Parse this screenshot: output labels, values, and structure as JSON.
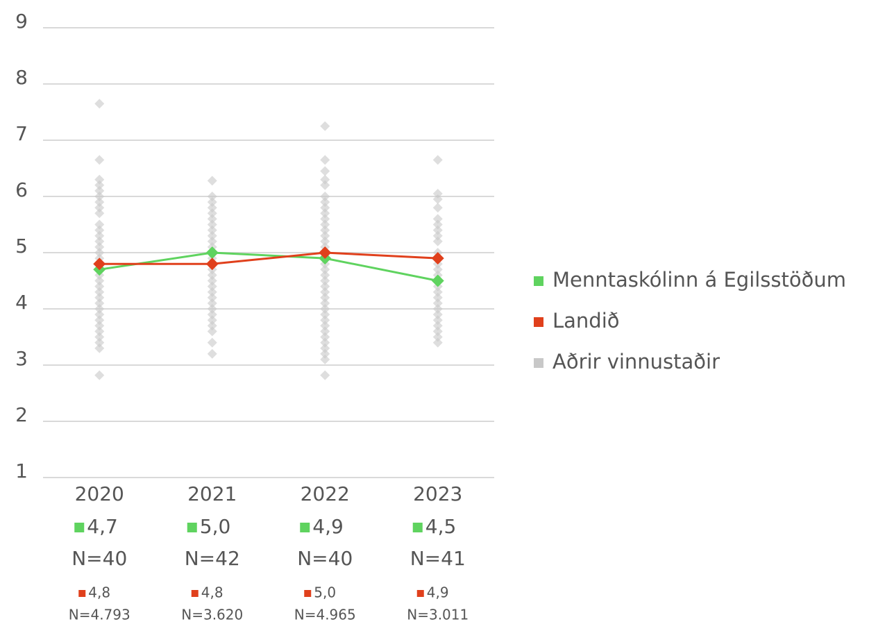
{
  "chart_data": {
    "type": "line",
    "categories": [
      "2020",
      "2021",
      "2022",
      "2023"
    ],
    "ylim": [
      1,
      9
    ],
    "yticks": [
      1,
      2,
      3,
      4,
      5,
      6,
      7,
      8,
      9
    ],
    "grid": true,
    "legend": "right",
    "series": [
      {
        "name": "Menntaskólinn á Egilsstöðum",
        "color": "#5fd35f",
        "values": [
          4.7,
          5.0,
          4.9,
          4.5
        ],
        "value_labels": [
          "4,7",
          "5,0",
          "4,9",
          "4,5"
        ],
        "n_labels": [
          "N=40",
          "N=42",
          "N=40",
          "N=41"
        ]
      },
      {
        "name": "Landið",
        "color": "#e0401c",
        "values": [
          4.8,
          4.8,
          5.0,
          4.9
        ],
        "value_labels": [
          "4,8",
          "4,8",
          "5,0",
          "4,9"
        ],
        "n_labels": [
          "N=4.793",
          "N=3.620",
          "N=4.965",
          "N=3.011"
        ]
      },
      {
        "name": "Aðrir vinnustaðir",
        "color": "#c8c8c8",
        "type": "scatter",
        "values": [
          [
            7.65,
            6.65,
            6.3,
            6.2,
            6.1,
            6.0,
            5.9,
            5.8,
            5.7,
            5.5,
            5.4,
            5.3,
            5.2,
            5.1,
            5.0,
            4.9,
            4.8,
            4.6,
            4.5,
            4.4,
            4.3,
            4.2,
            4.1,
            4.0,
            3.9,
            3.8,
            3.7,
            3.6,
            3.5,
            3.4,
            3.3,
            2.82
          ],
          [
            6.28,
            6.0,
            5.9,
            5.8,
            5.7,
            5.6,
            5.5,
            5.4,
            5.3,
            5.2,
            5.1,
            4.9,
            4.8,
            4.7,
            4.6,
            4.5,
            4.4,
            4.3,
            4.2,
            4.1,
            4.0,
            3.9,
            3.8,
            3.7,
            3.6,
            3.4,
            3.2
          ],
          [
            7.25,
            6.65,
            6.45,
            6.3,
            6.2,
            6.0,
            5.9,
            5.8,
            5.7,
            5.6,
            5.5,
            5.4,
            5.3,
            5.2,
            5.1,
            5.0,
            4.9,
            4.8,
            4.7,
            4.6,
            4.5,
            4.4,
            4.3,
            4.2,
            4.1,
            4.0,
            3.9,
            3.8,
            3.7,
            3.6,
            3.5,
            3.4,
            3.3,
            3.2,
            3.1,
            2.82
          ],
          [
            6.65,
            6.05,
            5.95,
            5.8,
            5.6,
            5.5,
            5.4,
            5.3,
            5.2,
            5.0,
            4.9,
            4.8,
            4.7,
            4.6,
            4.5,
            4.4,
            4.3,
            4.2,
            4.1,
            4.0,
            3.9,
            3.8,
            3.7,
            3.6,
            3.5,
            3.4
          ]
        ]
      }
    ]
  }
}
